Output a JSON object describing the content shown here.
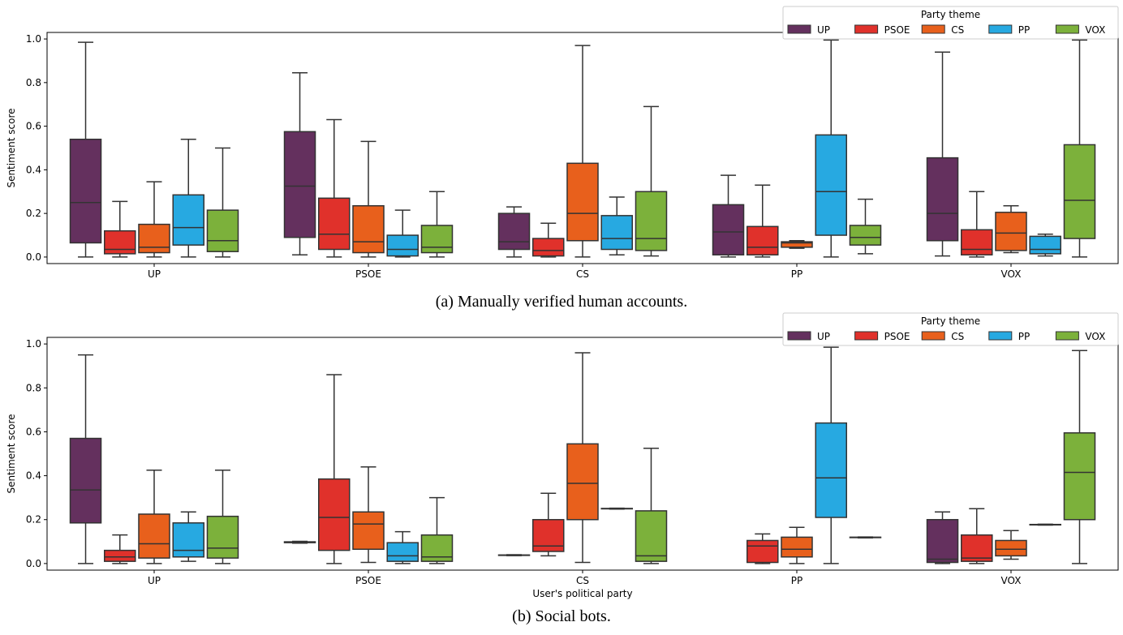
{
  "colors": {
    "UP": "#64305e",
    "PSOE": "#e0312b",
    "CS": "#e8601c",
    "PP": "#27a9e1",
    "VOX": "#7cb13b",
    "edge": "#333333"
  },
  "chart_data": [
    {
      "type": "box",
      "caption": "(a) Manually verified human accounts.",
      "xlabel": "",
      "ylabel": "Sentiment score",
      "ylim": [
        -0.03,
        1.03
      ],
      "yticks": [
        "0.0",
        "0.2",
        "0.4",
        "0.6",
        "0.8",
        "1.0"
      ],
      "categories": [
        "UP",
        "PSOE",
        "CS",
        "PP",
        "VOX"
      ],
      "legend": {
        "title": "Party theme",
        "entries": [
          "UP",
          "PSOE",
          "CS",
          "PP",
          "VOX"
        ],
        "placement": "top-right"
      },
      "groups": [
        {
          "category": "UP",
          "boxes": [
            {
              "theme": "UP",
              "min": 0.0,
              "q1": 0.065,
              "median": 0.25,
              "q3": 0.54,
              "max": 0.985
            },
            {
              "theme": "PSOE",
              "min": 0.0,
              "q1": 0.015,
              "median": 0.035,
              "q3": 0.12,
              "max": 0.255
            },
            {
              "theme": "CS",
              "min": 0.0,
              "q1": 0.02,
              "median": 0.045,
              "q3": 0.15,
              "max": 0.345
            },
            {
              "theme": "PP",
              "min": 0.0,
              "q1": 0.055,
              "median": 0.135,
              "q3": 0.285,
              "max": 0.54
            },
            {
              "theme": "VOX",
              "min": 0.0,
              "q1": 0.025,
              "median": 0.075,
              "q3": 0.215,
              "max": 0.5
            }
          ]
        },
        {
          "category": "PSOE",
          "boxes": [
            {
              "theme": "UP",
              "min": 0.01,
              "q1": 0.09,
              "median": 0.325,
              "q3": 0.575,
              "max": 0.845
            },
            {
              "theme": "PSOE",
              "min": 0.0,
              "q1": 0.035,
              "median": 0.105,
              "q3": 0.27,
              "max": 0.63
            },
            {
              "theme": "CS",
              "min": 0.0,
              "q1": 0.02,
              "median": 0.07,
              "q3": 0.235,
              "max": 0.53
            },
            {
              "theme": "PP",
              "min": 0.0,
              "q1": 0.005,
              "median": 0.035,
              "q3": 0.1,
              "max": 0.215
            },
            {
              "theme": "VOX",
              "min": 0.0,
              "q1": 0.02,
              "median": 0.045,
              "q3": 0.145,
              "max": 0.3
            }
          ]
        },
        {
          "category": "CS",
          "boxes": [
            {
              "theme": "UP",
              "min": 0.0,
              "q1": 0.035,
              "median": 0.07,
              "q3": 0.2,
              "max": 0.23
            },
            {
              "theme": "PSOE",
              "min": 0.0,
              "q1": 0.005,
              "median": 0.03,
              "q3": 0.085,
              "max": 0.155
            },
            {
              "theme": "CS",
              "min": 0.0,
              "q1": 0.075,
              "median": 0.2,
              "q3": 0.43,
              "max": 0.97
            },
            {
              "theme": "PP",
              "min": 0.01,
              "q1": 0.035,
              "median": 0.085,
              "q3": 0.19,
              "max": 0.275
            },
            {
              "theme": "VOX",
              "min": 0.005,
              "q1": 0.03,
              "median": 0.085,
              "q3": 0.3,
              "max": 0.69
            }
          ]
        },
        {
          "category": "PP",
          "boxes": [
            {
              "theme": "UP",
              "min": 0.0,
              "q1": 0.01,
              "median": 0.115,
              "q3": 0.24,
              "max": 0.375
            },
            {
              "theme": "PSOE",
              "min": 0.0,
              "q1": 0.01,
              "median": 0.045,
              "q3": 0.14,
              "max": 0.33
            },
            {
              "theme": "CS",
              "min": 0.04,
              "q1": 0.045,
              "median": 0.065,
              "q3": 0.07,
              "max": 0.075
            },
            {
              "theme": "PP",
              "min": 0.0,
              "q1": 0.1,
              "median": 0.3,
              "q3": 0.56,
              "max": 0.995
            },
            {
              "theme": "VOX",
              "min": 0.015,
              "q1": 0.055,
              "median": 0.09,
              "q3": 0.145,
              "max": 0.265
            }
          ]
        },
        {
          "category": "VOX",
          "boxes": [
            {
              "theme": "UP",
              "min": 0.005,
              "q1": 0.075,
              "median": 0.2,
              "q3": 0.455,
              "max": 0.94
            },
            {
              "theme": "PSOE",
              "min": 0.0,
              "q1": 0.01,
              "median": 0.035,
              "q3": 0.125,
              "max": 0.3
            },
            {
              "theme": "CS",
              "min": 0.02,
              "q1": 0.03,
              "median": 0.11,
              "q3": 0.205,
              "max": 0.235
            },
            {
              "theme": "PP",
              "min": 0.005,
              "q1": 0.015,
              "median": 0.035,
              "q3": 0.095,
              "max": 0.105
            },
            {
              "theme": "VOX",
              "min": 0.0,
              "q1": 0.085,
              "median": 0.26,
              "q3": 0.515,
              "max": 0.995
            }
          ]
        }
      ]
    },
    {
      "type": "box",
      "caption": "(b) Social bots.",
      "xlabel": "User's political party",
      "ylabel": "Sentiment score",
      "ylim": [
        -0.03,
        1.03
      ],
      "yticks": [
        "0.0",
        "0.2",
        "0.4",
        "0.6",
        "0.8",
        "1.0"
      ],
      "categories": [
        "UP",
        "PSOE",
        "CS",
        "PP",
        "VOX"
      ],
      "legend": {
        "title": "Party theme",
        "entries": [
          "UP",
          "PSOE",
          "CS",
          "PP",
          "VOX"
        ],
        "placement": "top-right"
      },
      "groups": [
        {
          "category": "UP",
          "boxes": [
            {
              "theme": "UP",
              "min": 0.0,
              "q1": 0.185,
              "median": 0.335,
              "q3": 0.57,
              "max": 0.95
            },
            {
              "theme": "PSOE",
              "min": 0.0,
              "q1": 0.01,
              "median": 0.03,
              "q3": 0.06,
              "max": 0.13
            },
            {
              "theme": "CS",
              "min": 0.0,
              "q1": 0.025,
              "median": 0.09,
              "q3": 0.225,
              "max": 0.425
            },
            {
              "theme": "PP",
              "min": 0.01,
              "q1": 0.03,
              "median": 0.06,
              "q3": 0.185,
              "max": 0.235
            },
            {
              "theme": "VOX",
              "min": 0.0,
              "q1": 0.025,
              "median": 0.07,
              "q3": 0.215,
              "max": 0.425
            }
          ]
        },
        {
          "category": "PSOE",
          "boxes": [
            {
              "theme": "UP",
              "min": 0.093,
              "q1": 0.095,
              "median": 0.097,
              "q3": 0.099,
              "max": 0.101
            },
            {
              "theme": "PSOE",
              "min": 0.0,
              "q1": 0.06,
              "median": 0.21,
              "q3": 0.385,
              "max": 0.86
            },
            {
              "theme": "CS",
              "min": 0.005,
              "q1": 0.065,
              "median": 0.18,
              "q3": 0.235,
              "max": 0.44
            },
            {
              "theme": "PP",
              "min": 0.0,
              "q1": 0.01,
              "median": 0.035,
              "q3": 0.095,
              "max": 0.145
            },
            {
              "theme": "VOX",
              "min": 0.0,
              "q1": 0.01,
              "median": 0.03,
              "q3": 0.13,
              "max": 0.3
            }
          ]
        },
        {
          "category": "CS",
          "boxes": [
            {
              "theme": "UP",
              "min": 0.036,
              "q1": 0.037,
              "median": 0.038,
              "q3": 0.039,
              "max": 0.04
            },
            {
              "theme": "PSOE",
              "min": 0.035,
              "q1": 0.055,
              "median": 0.08,
              "q3": 0.2,
              "max": 0.32
            },
            {
              "theme": "CS",
              "min": 0.005,
              "q1": 0.2,
              "median": 0.365,
              "q3": 0.545,
              "max": 0.96
            },
            {
              "theme": "PP",
              "min": 0.248,
              "q1": 0.249,
              "median": 0.25,
              "q3": 0.251,
              "max": 0.252
            },
            {
              "theme": "VOX",
              "min": 0.0,
              "q1": 0.01,
              "median": 0.035,
              "q3": 0.24,
              "max": 0.525
            }
          ]
        },
        {
          "category": "PP",
          "boxes": [
            {
              "theme": "PSOE",
              "min": 0.0,
              "q1": 0.005,
              "median": 0.08,
              "q3": 0.105,
              "max": 0.135
            },
            {
              "theme": "CS",
              "min": 0.0,
              "q1": 0.03,
              "median": 0.065,
              "q3": 0.12,
              "max": 0.165
            },
            {
              "theme": "PP",
              "min": 0.0,
              "q1": 0.21,
              "median": 0.39,
              "q3": 0.64,
              "max": 0.985
            },
            {
              "theme": "VOX",
              "min": 0.117,
              "q1": 0.118,
              "median": 0.119,
              "q3": 0.12,
              "max": 0.121
            }
          ]
        },
        {
          "category": "VOX",
          "boxes": [
            {
              "theme": "UP",
              "min": 0.0,
              "q1": 0.005,
              "median": 0.02,
              "q3": 0.2,
              "max": 0.235
            },
            {
              "theme": "PSOE",
              "min": 0.0,
              "q1": 0.01,
              "median": 0.025,
              "q3": 0.13,
              "max": 0.25
            },
            {
              "theme": "CS",
              "min": 0.02,
              "q1": 0.035,
              "median": 0.065,
              "q3": 0.105,
              "max": 0.15
            },
            {
              "theme": "PP",
              "min": 0.175,
              "q1": 0.176,
              "median": 0.177,
              "q3": 0.178,
              "max": 0.179
            },
            {
              "theme": "VOX",
              "min": 0.0,
              "q1": 0.2,
              "median": 0.415,
              "q3": 0.595,
              "max": 0.97
            }
          ]
        }
      ]
    }
  ]
}
